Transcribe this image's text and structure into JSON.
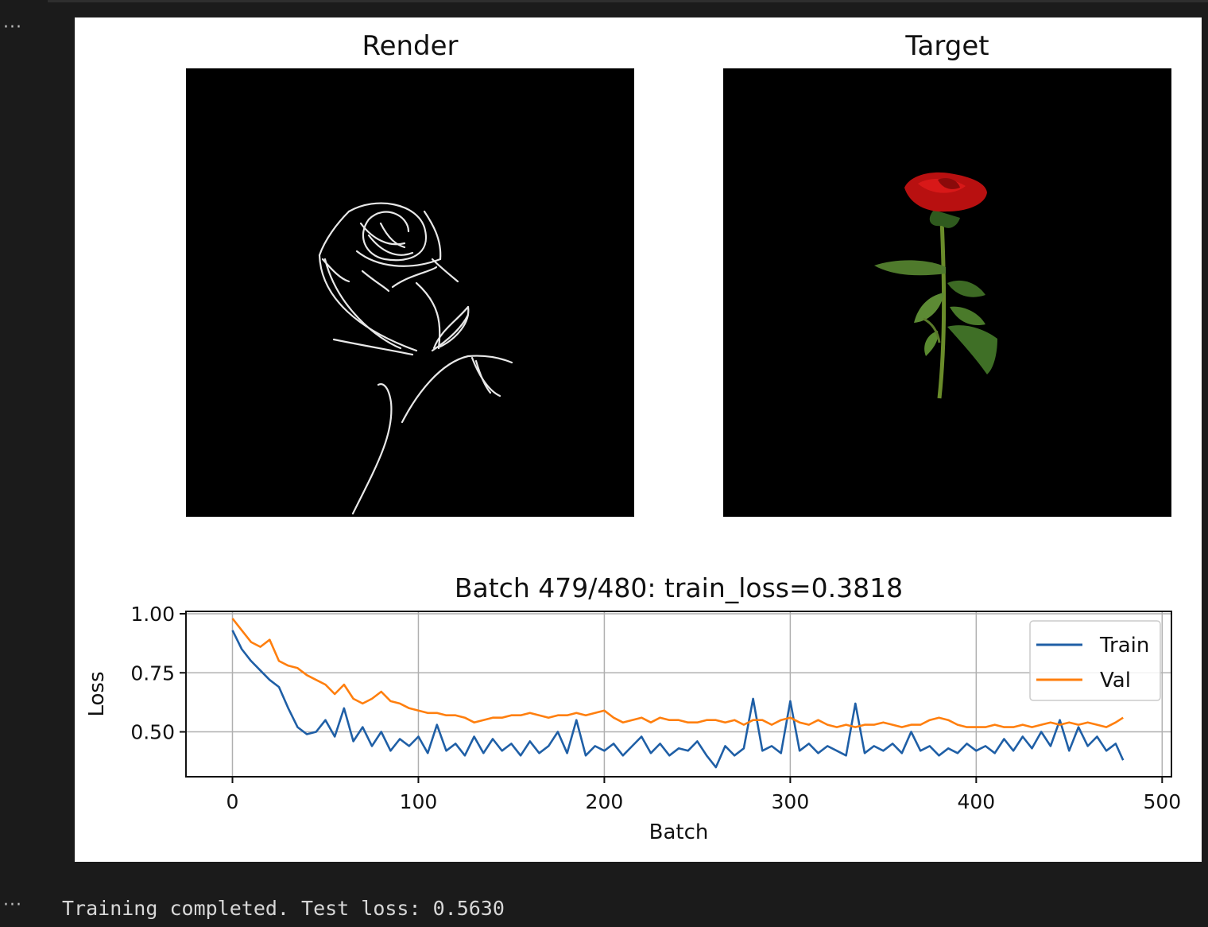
{
  "cell": {
    "top_ellipsis": "···",
    "bottom_ellipsis": "···",
    "output_text": "Training completed. Test loss: 0.5630"
  },
  "figure": {
    "render_title": "Render",
    "target_title": "Target",
    "render_image": "white line sketch of a rose on black background",
    "target_image": "photo of a red rose with green stem and leaves on black background"
  },
  "chart_data": {
    "type": "line",
    "title": "Batch 479/480: train_loss=0.3818",
    "xlabel": "Batch",
    "ylabel": "Loss",
    "xlim": [
      -25,
      505
    ],
    "ylim": [
      0.31,
      1.01
    ],
    "xticks": [
      0,
      100,
      200,
      300,
      400,
      500
    ],
    "yticks": [
      0.5,
      0.75,
      1.0
    ],
    "ytick_labels": [
      "0.50",
      "0.75",
      "1.00"
    ],
    "grid": true,
    "legend_position": "top-right",
    "series": [
      {
        "name": "Train",
        "color": "#1f5fa6",
        "x": [
          0,
          5,
          10,
          15,
          20,
          25,
          30,
          35,
          40,
          45,
          50,
          55,
          60,
          65,
          70,
          75,
          80,
          85,
          90,
          95,
          100,
          105,
          110,
          115,
          120,
          125,
          130,
          135,
          140,
          145,
          150,
          155,
          160,
          165,
          170,
          175,
          180,
          185,
          190,
          195,
          200,
          205,
          210,
          215,
          220,
          225,
          230,
          235,
          240,
          245,
          250,
          255,
          260,
          265,
          270,
          275,
          280,
          285,
          290,
          295,
          300,
          305,
          310,
          315,
          320,
          325,
          330,
          335,
          340,
          345,
          350,
          355,
          360,
          365,
          370,
          375,
          380,
          385,
          390,
          395,
          400,
          405,
          410,
          415,
          420,
          425,
          430,
          435,
          440,
          445,
          450,
          455,
          460,
          465,
          470,
          475,
          479
        ],
        "y": [
          0.93,
          0.85,
          0.8,
          0.76,
          0.72,
          0.69,
          0.6,
          0.52,
          0.49,
          0.5,
          0.55,
          0.48,
          0.6,
          0.46,
          0.52,
          0.44,
          0.5,
          0.42,
          0.47,
          0.44,
          0.48,
          0.41,
          0.53,
          0.42,
          0.45,
          0.4,
          0.48,
          0.41,
          0.47,
          0.42,
          0.45,
          0.4,
          0.46,
          0.41,
          0.44,
          0.5,
          0.41,
          0.55,
          0.4,
          0.44,
          0.42,
          0.45,
          0.4,
          0.44,
          0.48,
          0.41,
          0.45,
          0.4,
          0.43,
          0.42,
          0.46,
          0.4,
          0.35,
          0.44,
          0.4,
          0.43,
          0.64,
          0.42,
          0.44,
          0.41,
          0.63,
          0.42,
          0.45,
          0.41,
          0.44,
          0.42,
          0.4,
          0.62,
          0.41,
          0.44,
          0.42,
          0.45,
          0.41,
          0.5,
          0.42,
          0.44,
          0.4,
          0.43,
          0.41,
          0.45,
          0.42,
          0.44,
          0.41,
          0.47,
          0.42,
          0.48,
          0.43,
          0.5,
          0.44,
          0.55,
          0.42,
          0.52,
          0.44,
          0.48,
          0.42,
          0.45,
          0.38
        ],
        "final_value": 0.3818
      },
      {
        "name": "Val",
        "color": "#ff7f0e",
        "x": [
          0,
          5,
          10,
          15,
          20,
          25,
          30,
          35,
          40,
          45,
          50,
          55,
          60,
          65,
          70,
          75,
          80,
          85,
          90,
          95,
          100,
          105,
          110,
          115,
          120,
          125,
          130,
          135,
          140,
          145,
          150,
          155,
          160,
          165,
          170,
          175,
          180,
          185,
          190,
          195,
          200,
          205,
          210,
          215,
          220,
          225,
          230,
          235,
          240,
          245,
          250,
          255,
          260,
          265,
          270,
          275,
          280,
          285,
          290,
          295,
          300,
          305,
          310,
          315,
          320,
          325,
          330,
          335,
          340,
          345,
          350,
          355,
          360,
          365,
          370,
          375,
          380,
          385,
          390,
          395,
          400,
          405,
          410,
          415,
          420,
          425,
          430,
          435,
          440,
          445,
          450,
          455,
          460,
          465,
          470,
          475,
          479
        ],
        "y": [
          0.98,
          0.93,
          0.88,
          0.86,
          0.89,
          0.8,
          0.78,
          0.77,
          0.74,
          0.72,
          0.7,
          0.66,
          0.7,
          0.64,
          0.62,
          0.64,
          0.67,
          0.63,
          0.62,
          0.6,
          0.59,
          0.58,
          0.58,
          0.57,
          0.57,
          0.56,
          0.54,
          0.55,
          0.56,
          0.56,
          0.57,
          0.57,
          0.58,
          0.57,
          0.56,
          0.57,
          0.57,
          0.58,
          0.57,
          0.58,
          0.59,
          0.56,
          0.54,
          0.55,
          0.56,
          0.54,
          0.56,
          0.55,
          0.55,
          0.54,
          0.54,
          0.55,
          0.55,
          0.54,
          0.55,
          0.53,
          0.55,
          0.55,
          0.53,
          0.55,
          0.56,
          0.54,
          0.53,
          0.55,
          0.53,
          0.52,
          0.53,
          0.52,
          0.53,
          0.53,
          0.54,
          0.53,
          0.52,
          0.53,
          0.53,
          0.55,
          0.56,
          0.55,
          0.53,
          0.52,
          0.52,
          0.52,
          0.53,
          0.52,
          0.52,
          0.53,
          0.52,
          0.53,
          0.54,
          0.53,
          0.54,
          0.53,
          0.54,
          0.53,
          0.52,
          0.54,
          0.56
        ]
      }
    ]
  }
}
